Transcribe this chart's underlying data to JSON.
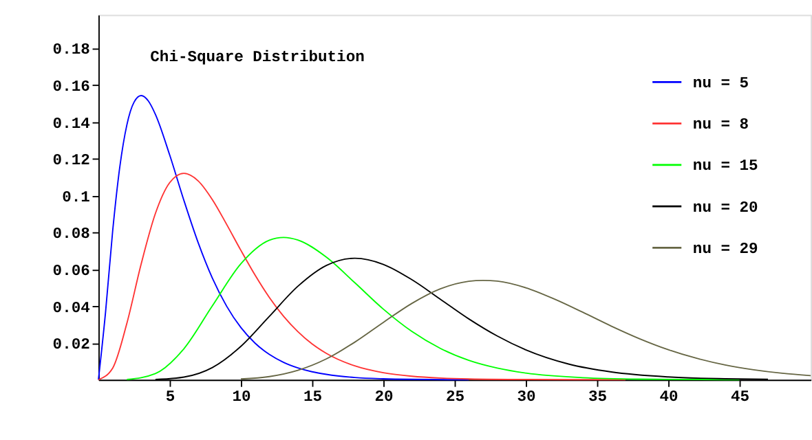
{
  "chart_data": {
    "type": "line",
    "title": "Chi-Square Distribution",
    "xlim": [
      0,
      50
    ],
    "ylim": [
      0,
      0.198
    ],
    "xticks": [
      5,
      10,
      15,
      20,
      25,
      30,
      35,
      40,
      45
    ],
    "yticks": [
      0.02,
      0.04,
      0.06,
      0.08,
      {
        "value": 0.1,
        "label": "0.1"
      },
      0.12,
      0.14,
      0.16,
      0.18
    ],
    "grid": false,
    "legend": "top right",
    "marker": "none",
    "line_style": "solid",
    "series": [
      {
        "name": "nu = 5",
        "color": "#0000ff",
        "x": [
          0,
          0.5,
          1,
          1.5,
          2,
          2.5,
          3,
          3.5,
          4,
          5,
          6,
          7,
          8,
          9,
          10,
          11,
          12,
          13,
          14,
          15,
          16,
          18,
          20,
          22,
          26
        ],
        "values": [
          0,
          0.0366,
          0.0807,
          0.1154,
          0.1384,
          0.1506,
          0.1542,
          0.1513,
          0.144,
          0.122,
          0.0973,
          0.0744,
          0.0551,
          0.0399,
          0.0283,
          0.0198,
          0.0137,
          0.0094,
          0.0064,
          0.0043,
          0.0029,
          0.0012,
          0.0005,
          0.0002,
          0
        ]
      },
      {
        "name": "nu = 8",
        "color": "#ff3333",
        "x": [
          0,
          1,
          2,
          3,
          4,
          5,
          6,
          7,
          8,
          9,
          10,
          11,
          12,
          13,
          14,
          15,
          16,
          18,
          20,
          22,
          24,
          26,
          30,
          37
        ],
        "values": [
          0,
          0.0063,
          0.0307,
          0.0628,
          0.0902,
          0.1069,
          0.112,
          0.1079,
          0.0977,
          0.0843,
          0.0702,
          0.0567,
          0.0446,
          0.0344,
          0.0261,
          0.0194,
          0.0143,
          0.0075,
          0.0038,
          0.0019,
          0.0009,
          0.0004,
          0.0001,
          0
        ]
      },
      {
        "name": "nu = 15",
        "color": "#00ff00",
        "x": [
          2,
          4,
          6,
          8,
          10,
          12,
          13,
          14,
          16,
          18,
          20,
          22,
          24,
          26,
          28,
          30,
          34,
          38,
          42,
          45
        ],
        "values": [
          0.0001,
          0.0033,
          0.0168,
          0.0401,
          0.0629,
          0.0757,
          0.0772,
          0.0758,
          0.0665,
          0.0526,
          0.0383,
          0.0262,
          0.017,
          0.0105,
          0.0063,
          0.0036,
          0.0011,
          0.0003,
          0.0001,
          0
        ]
      },
      {
        "name": "nu = 20",
        "color": "#000000",
        "x": [
          4,
          6,
          8,
          10,
          12,
          14,
          16,
          18,
          20,
          22,
          24,
          26,
          28,
          30,
          33,
          36,
          40,
          44,
          47
        ],
        "values": [
          0.0001,
          0.0014,
          0.0066,
          0.0181,
          0.0344,
          0.0507,
          0.062,
          0.0659,
          0.0626,
          0.0543,
          0.0437,
          0.033,
          0.0237,
          0.0162,
          0.0085,
          0.0042,
          0.0015,
          0.0005,
          0.0002
        ]
      },
      {
        "name": "nu = 29",
        "color": "#666644",
        "x": [
          10,
          12,
          14,
          16,
          18,
          20,
          22,
          24,
          26,
          27,
          28,
          30,
          32,
          34,
          36,
          38,
          40,
          42,
          44,
          46,
          48,
          50
        ],
        "values": [
          0.0004,
          0.0017,
          0.0051,
          0.0113,
          0.0204,
          0.0311,
          0.0414,
          0.0493,
          0.0534,
          0.0539,
          0.0535,
          0.0499,
          0.0438,
          0.0366,
          0.0291,
          0.0222,
          0.0163,
          0.0116,
          0.008,
          0.0054,
          0.0035,
          0.0022
        ]
      }
    ]
  }
}
